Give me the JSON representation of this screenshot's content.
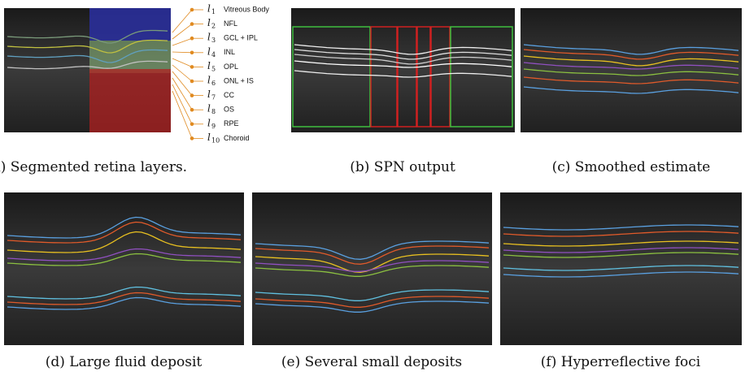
{
  "legend": {
    "items": [
      {
        "symbol": "l",
        "index": "1",
        "label": "Vitreous Body"
      },
      {
        "symbol": "l",
        "index": "2",
        "label": "NFL"
      },
      {
        "symbol": "l",
        "index": "3",
        "label": "GCL + IPL"
      },
      {
        "symbol": "l",
        "index": "4",
        "label": "INL"
      },
      {
        "symbol": "l",
        "index": "5",
        "label": "OPL"
      },
      {
        "symbol": "l",
        "index": "6",
        "label": "ONL + IS"
      },
      {
        "symbol": "l",
        "index": "7",
        "label": "CC"
      },
      {
        "symbol": "l",
        "index": "8",
        "label": "OS"
      },
      {
        "symbol": "l",
        "index": "9",
        "label": "RPE"
      },
      {
        "symbol": "l",
        "index": "10",
        "label": "Choroid"
      }
    ]
  },
  "panels": [
    {
      "caption": "(a) Segmented retina layers."
    },
    {
      "caption": "(b) SPN output"
    },
    {
      "caption": "(c) Smoothed estimate"
    },
    {
      "caption": "(d) Large fluid deposit"
    },
    {
      "caption": "(e) Several small deposits"
    },
    {
      "caption": "(f) Hyperreflective foci"
    }
  ]
}
